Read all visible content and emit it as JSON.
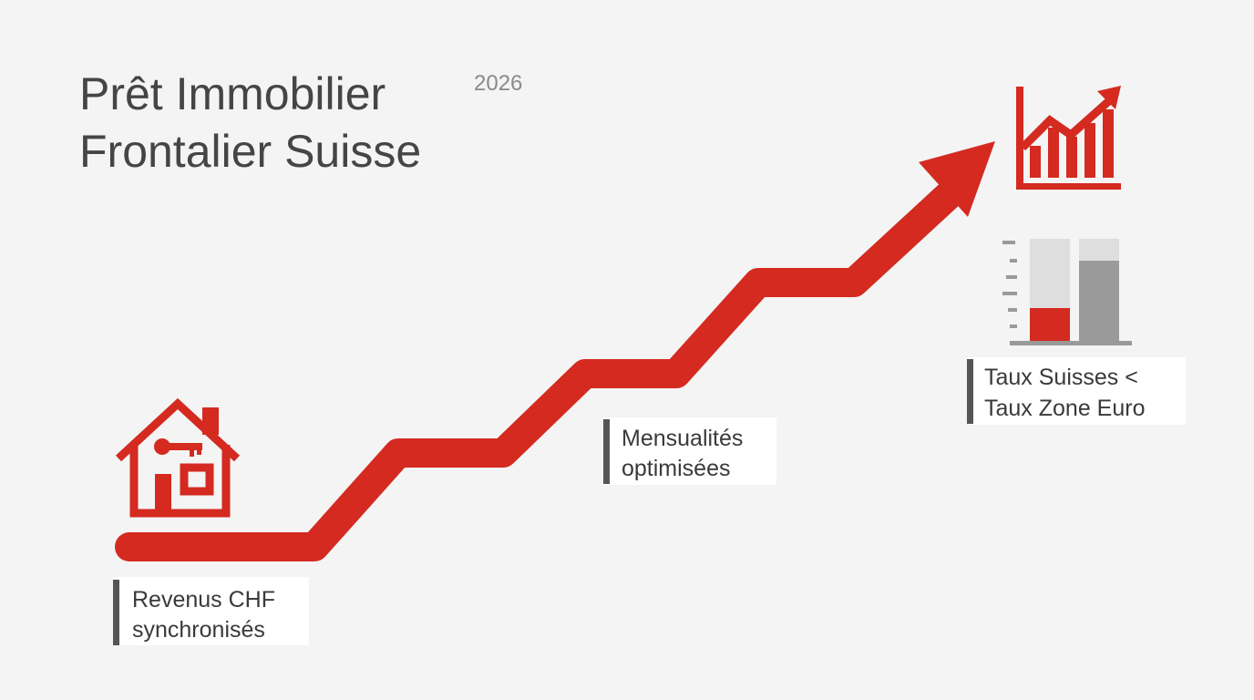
{
  "header": {
    "title": [
      "Prêt Immobilier",
      "Frontalier Suisse"
    ],
    "year": "2026"
  },
  "labels": [
    {
      "lines": [
        "Revenus CHF",
        "synchronisés"
      ]
    },
    {
      "lines": [
        "Mensualités",
        "optimisées"
      ]
    },
    {
      "lines": [
        "Taux Suisses <",
        "Taux Zone Euro"
      ]
    }
  ]
}
